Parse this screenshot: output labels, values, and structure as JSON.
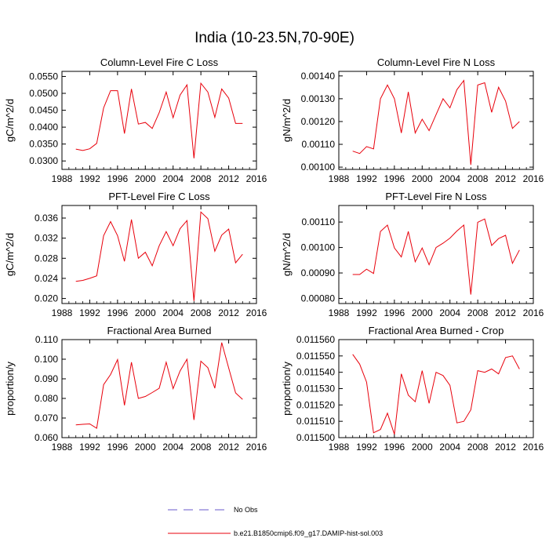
{
  "page_title": "India (10-23.5N,70-90E)",
  "legend": [
    {
      "label": "No Obs",
      "color": "#6a5acd",
      "style": "dashed"
    },
    {
      "label": "b.e21.B1850cmip6.f09_g17.DAMIP-hist-sol.003",
      "color": "#e8000b",
      "style": "solid"
    }
  ],
  "chart_data": [
    {
      "type": "line",
      "title": "Column-Level Fire C Loss",
      "ylabel": "gC/m^2/d",
      "xlim": [
        1988,
        2016
      ],
      "ylim": [
        0.0275,
        0.0565
      ],
      "xticks": [
        "1988",
        "1992",
        "1996",
        "2000",
        "2004",
        "2008",
        "2012",
        "2016"
      ],
      "yticks": [
        "0.0300",
        "0.0350",
        "0.0400",
        "0.0450",
        "0.0500",
        "0.0550"
      ],
      "series": [
        {
          "x": [
            1990,
            1991,
            1992,
            1993,
            1994,
            1995,
            1996,
            1997,
            1998,
            1999,
            2000,
            2001,
            2002,
            2003,
            2004,
            2005,
            2006,
            2007,
            2008,
            2009,
            2010,
            2011,
            2012,
            2013,
            2014
          ],
          "values": [
            0.0335,
            0.0331,
            0.0336,
            0.0352,
            0.0457,
            0.0508,
            0.0508,
            0.0381,
            0.0513,
            0.0409,
            0.0414,
            0.0396,
            0.0443,
            0.0504,
            0.0428,
            0.0495,
            0.0525,
            0.0308,
            0.053,
            0.0504,
            0.0429,
            0.0513,
            0.0486,
            0.0411,
            0.0411
          ],
          "color": "#e8000b"
        }
      ]
    },
    {
      "type": "line",
      "title": "Column-Level Fire N Loss",
      "ylabel": "gN/m^2/d",
      "xlim": [
        1988,
        2016
      ],
      "ylim": [
        0.00099,
        0.00142
      ],
      "xticks": [
        "1988",
        "1992",
        "1996",
        "2000",
        "2004",
        "2008",
        "2012",
        "2016"
      ],
      "yticks": [
        "0.00100",
        "0.00110",
        "0.00120",
        "0.00130",
        "0.00140"
      ],
      "series": [
        {
          "x": [
            1990,
            1991,
            1992,
            1993,
            1994,
            1995,
            1996,
            1997,
            1998,
            1999,
            2000,
            2001,
            2002,
            2003,
            2004,
            2005,
            2006,
            2007,
            2008,
            2009,
            2010,
            2011,
            2012,
            2013,
            2014
          ],
          "values": [
            0.00107,
            0.00106,
            0.00109,
            0.00108,
            0.0013,
            0.00136,
            0.0013,
            0.00115,
            0.00133,
            0.00115,
            0.00121,
            0.00116,
            0.00123,
            0.0013,
            0.00126,
            0.00134,
            0.00138,
            0.00101,
            0.00136,
            0.00137,
            0.00124,
            0.00135,
            0.00129,
            0.00117,
            0.0012
          ],
          "color": "#e8000b"
        }
      ]
    },
    {
      "type": "line",
      "title": "PFT-Level Fire C Loss",
      "ylabel": "gC/m^2/d",
      "xlim": [
        1988,
        2016
      ],
      "ylim": [
        0.019,
        0.0385
      ],
      "xticks": [
        "1988",
        "1992",
        "1996",
        "2000",
        "2004",
        "2008",
        "2012",
        "2016"
      ],
      "yticks": [
        "0.020",
        "0.024",
        "0.028",
        "0.032",
        "0.036"
      ],
      "series": [
        {
          "x": [
            1990,
            1991,
            1992,
            1993,
            1994,
            1995,
            1996,
            1997,
            1998,
            1999,
            2000,
            2001,
            2002,
            2003,
            2004,
            2005,
            2006,
            2007,
            2008,
            2009,
            2010,
            2011,
            2012,
            2013,
            2014
          ],
          "values": [
            0.0234,
            0.0236,
            0.024,
            0.0245,
            0.0325,
            0.0353,
            0.0325,
            0.0274,
            0.0357,
            0.028,
            0.0292,
            0.0265,
            0.0305,
            0.0333,
            0.0305,
            0.0339,
            0.0355,
            0.0195,
            0.0372,
            0.0359,
            0.0294,
            0.0326,
            0.0338,
            0.0271,
            0.0288
          ],
          "color": "#e8000b"
        }
      ]
    },
    {
      "type": "line",
      "title": "PFT-Level Fire N Loss",
      "ylabel": "gN/m^2/d",
      "xlim": [
        1988,
        2016
      ],
      "ylim": [
        0.00078,
        0.001165
      ],
      "xticks": [
        "1988",
        "1992",
        "1996",
        "2000",
        "2004",
        "2008",
        "2012",
        "2016"
      ],
      "yticks": [
        "0.00080",
        "0.00090",
        "0.00100",
        "0.00110"
      ],
      "series": [
        {
          "x": [
            1990,
            1991,
            1992,
            1993,
            1994,
            1995,
            1996,
            1997,
            1998,
            1999,
            2000,
            2001,
            2002,
            2003,
            2004,
            2005,
            2006,
            2007,
            2008,
            2009,
            2010,
            2011,
            2012,
            2013,
            2014
          ],
          "values": [
            0.000894,
            0.000894,
            0.000915,
            0.000898,
            0.001063,
            0.001088,
            0.000998,
            0.000963,
            0.001063,
            0.000944,
            0.000998,
            0.000932,
            0.001,
            0.001017,
            0.001037,
            0.001065,
            0.001088,
            0.000815,
            0.001099,
            0.001112,
            0.001008,
            0.001035,
            0.001048,
            0.000938,
            0.00099
          ],
          "color": "#e8000b"
        }
      ]
    },
    {
      "type": "line",
      "title": "Fractional Area Burned",
      "ylabel": "proportion/y",
      "xlim": [
        1988,
        2016
      ],
      "ylim": [
        0.06,
        0.11
      ],
      "xticks": [
        "1988",
        "1992",
        "1996",
        "2000",
        "2004",
        "2008",
        "2012",
        "2016"
      ],
      "yticks": [
        "0.060",
        "0.070",
        "0.080",
        "0.090",
        "0.100",
        "0.110"
      ],
      "series": [
        {
          "x": [
            1990,
            1991,
            1992,
            1993,
            1994,
            1995,
            1996,
            1997,
            1998,
            1999,
            2000,
            2001,
            2002,
            2003,
            2004,
            2005,
            2006,
            2007,
            2008,
            2009,
            2010,
            2011,
            2012,
            2013,
            2014
          ],
          "values": [
            0.0665,
            0.0668,
            0.067,
            0.0648,
            0.087,
            0.0922,
            0.0998,
            0.0765,
            0.0985,
            0.08,
            0.081,
            0.083,
            0.0852,
            0.0985,
            0.085,
            0.094,
            0.1,
            0.069,
            0.099,
            0.0957,
            0.0852,
            0.1085,
            0.0955,
            0.0828,
            0.0795
          ],
          "color": "#e8000b"
        }
      ]
    },
    {
      "type": "line",
      "title": "Fractional Area Burned - Crop",
      "ylabel": "proportion/y",
      "xlim": [
        1988,
        2016
      ],
      "ylim": [
        0.0115,
        0.01156
      ],
      "xticks": [
        "1988",
        "1992",
        "1996",
        "2000",
        "2004",
        "2008",
        "2012",
        "2016"
      ],
      "yticks": [
        "0.011500",
        "0.011510",
        "0.011520",
        "0.011530",
        "0.011540",
        "0.011550",
        "0.011560"
      ],
      "series": [
        {
          "x": [
            1990,
            1991,
            1992,
            1993,
            1994,
            1995,
            1996,
            1997,
            1998,
            1999,
            2000,
            2001,
            2002,
            2003,
            2004,
            2005,
            2006,
            2007,
            2008,
            2009,
            2010,
            2011,
            2012,
            2013,
            2014
          ],
          "values": [
            0.011551,
            0.011545,
            0.011534,
            0.011503,
            0.011505,
            0.011515,
            0.011502,
            0.011539,
            0.011526,
            0.011522,
            0.011541,
            0.011521,
            0.01154,
            0.011538,
            0.011532,
            0.011509,
            0.01151,
            0.011517,
            0.011541,
            0.01154,
            0.011542,
            0.011539,
            0.011549,
            0.01155,
            0.011542
          ],
          "color": "#e8000b"
        }
      ]
    }
  ]
}
